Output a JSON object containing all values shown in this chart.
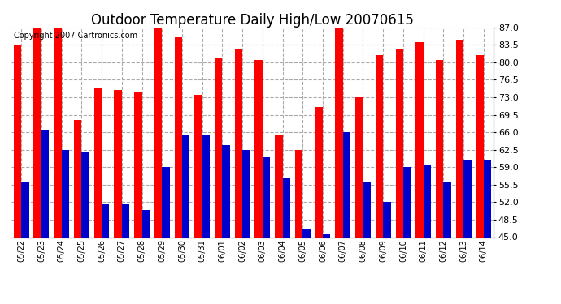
{
  "title": "Outdoor Temperature Daily High/Low 20070615",
  "copyright": "Copyright 2007 Cartronics.com",
  "dates": [
    "05/22",
    "05/23",
    "05/24",
    "05/25",
    "05/26",
    "05/27",
    "05/28",
    "05/29",
    "05/30",
    "05/31",
    "06/01",
    "06/02",
    "06/03",
    "06/04",
    "06/05",
    "06/06",
    "06/07",
    "06/08",
    "06/09",
    "06/10",
    "06/11",
    "06/12",
    "06/13",
    "06/14"
  ],
  "highs": [
    83.5,
    87.0,
    87.0,
    68.5,
    75.0,
    74.5,
    74.0,
    87.0,
    85.0,
    73.5,
    81.0,
    82.5,
    80.5,
    65.5,
    62.5,
    71.0,
    87.5,
    73.0,
    81.5,
    82.5,
    84.0,
    80.5,
    84.5,
    81.5
  ],
  "lows": [
    56.0,
    66.5,
    62.5,
    62.0,
    51.5,
    51.5,
    50.5,
    59.0,
    65.5,
    65.5,
    63.5,
    62.5,
    61.0,
    57.0,
    46.5,
    45.5,
    66.0,
    56.0,
    52.0,
    59.0,
    59.5,
    56.0,
    60.5,
    60.5
  ],
  "high_color": "#FF0000",
  "low_color": "#0000CC",
  "background_color": "#FFFFFF",
  "plot_bg_color": "#FFFFFF",
  "grid_color": "#AAAAAA",
  "ymin": 45.0,
  "ymax": 87.0,
  "yticks": [
    45.0,
    48.5,
    52.0,
    55.5,
    59.0,
    62.5,
    66.0,
    69.5,
    73.0,
    76.5,
    80.0,
    83.5,
    87.0
  ],
  "title_fontsize": 12,
  "copyright_fontsize": 7,
  "bar_width": 0.38
}
